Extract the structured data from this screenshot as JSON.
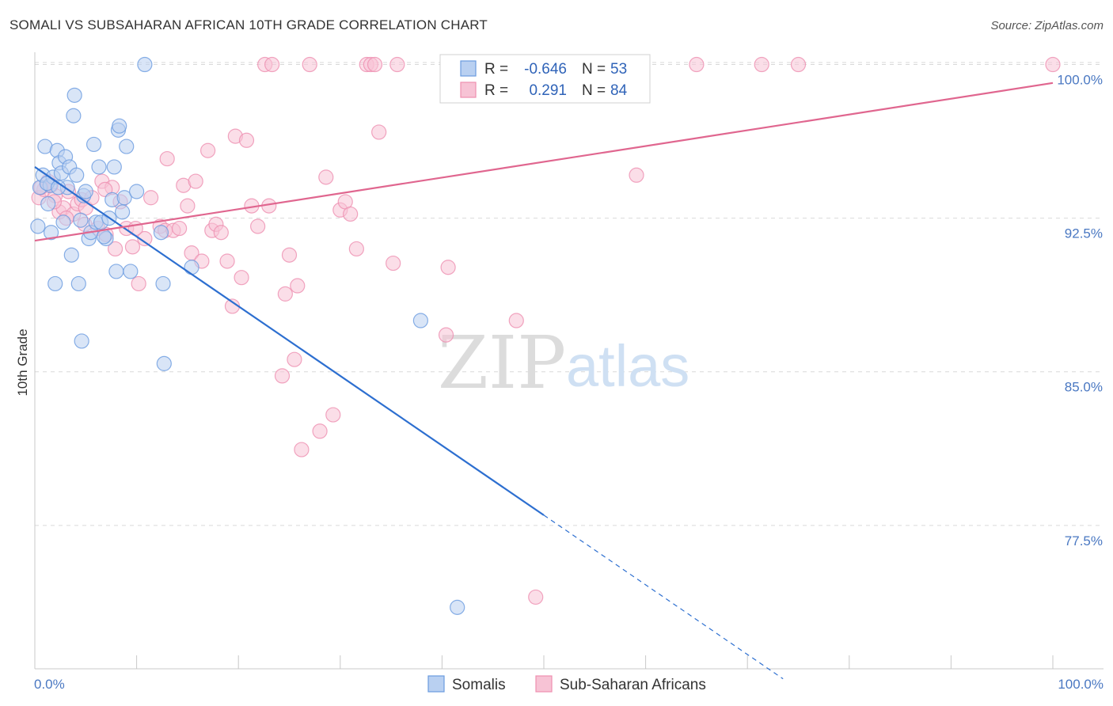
{
  "header": {
    "title": "SOMALI VS SUBSAHARAN AFRICAN 10TH GRADE CORRELATION CHART",
    "source": "Source: ZipAtlas.com"
  },
  "watermark": {
    "zip": "ZIP",
    "atlas": "atlas"
  },
  "colors": {
    "somali": "#6a9be0",
    "somali_fill": "#b9d0f1",
    "somali_line": "#2d6fd0",
    "subsaharan": "#ee8fb0",
    "subsaharan_fill": "#f7c3d5",
    "subsaharan_line": "#e0668f",
    "tick_text": "#4a78c2",
    "grid": "#d9d9d9"
  },
  "legend": {
    "rows": [
      {
        "r_label": "R =",
        "r_value": "-0.646",
        "n_label": "N =",
        "n_value": "53"
      },
      {
        "r_label": "R =",
        "r_value": "0.291",
        "n_label": "N =",
        "n_value": "84"
      }
    ]
  },
  "bottom_legend": {
    "series1": "Somalis",
    "series2": "Sub-Saharan Africans"
  },
  "chart_data": {
    "type": "scatter",
    "title": "SOMALI VS SUBSAHARAN AFRICAN 10TH GRADE CORRELATION CHART",
    "xlabel": "",
    "ylabel": "10th Grade",
    "xlim": [
      0,
      100
    ],
    "ylim": [
      70.5,
      100.6
    ],
    "x_tick_labels": [
      "0.0%",
      "100.0%"
    ],
    "y_ticks": [
      77.5,
      85.0,
      92.5,
      100.0
    ],
    "y_tick_labels": [
      "77.5%",
      "85.0%",
      "92.5%",
      "100.0%"
    ],
    "grid": true,
    "series": [
      {
        "name": "Somalis",
        "r": -0.646,
        "n": 53,
        "trend": {
          "x0": 0,
          "y0": 95.0,
          "x1": 50,
          "y1": 78.0,
          "dashed_to_x": 73.5
        },
        "points": [
          [
            0.3,
            92.1
          ],
          [
            0.5,
            94.0
          ],
          [
            0.8,
            94.6
          ],
          [
            1.0,
            96.0
          ],
          [
            1.3,
            93.2
          ],
          [
            1.5,
            94.1
          ],
          [
            1.6,
            91.8
          ],
          [
            1.8,
            94.5
          ],
          [
            2.0,
            89.3
          ],
          [
            2.2,
            95.8
          ],
          [
            2.4,
            95.2
          ],
          [
            2.6,
            94.7
          ],
          [
            2.8,
            92.3
          ],
          [
            3.0,
            95.5
          ],
          [
            3.2,
            94.0
          ],
          [
            3.4,
            95.0
          ],
          [
            3.6,
            90.7
          ],
          [
            3.8,
            97.5
          ],
          [
            3.9,
            98.5
          ],
          [
            4.1,
            94.6
          ],
          [
            4.3,
            89.3
          ],
          [
            4.5,
            92.4
          ],
          [
            4.6,
            86.5
          ],
          [
            4.8,
            93.6
          ],
          [
            5.0,
            93.8
          ],
          [
            5.3,
            91.5
          ],
          [
            5.5,
            91.8
          ],
          [
            5.8,
            96.1
          ],
          [
            6.0,
            92.3
          ],
          [
            6.3,
            95.0
          ],
          [
            6.5,
            92.3
          ],
          [
            7.0,
            91.5
          ],
          [
            7.3,
            92.5
          ],
          [
            7.6,
            93.4
          ],
          [
            7.8,
            95.0
          ],
          [
            8.0,
            89.9
          ],
          [
            8.2,
            96.8
          ],
          [
            8.3,
            97.0
          ],
          [
            8.6,
            92.8
          ],
          [
            8.8,
            93.5
          ],
          [
            9.0,
            96.0
          ],
          [
            9.4,
            89.9
          ],
          [
            10.0,
            93.8
          ],
          [
            10.8,
            100.0
          ],
          [
            12.4,
            91.8
          ],
          [
            12.6,
            89.3
          ],
          [
            12.7,
            85.4
          ],
          [
            15.4,
            90.1
          ],
          [
            37.9,
            87.5
          ],
          [
            41.5,
            73.5
          ],
          [
            1.2,
            94.2
          ],
          [
            2.3,
            94.0
          ],
          [
            6.8,
            91.6
          ]
        ]
      },
      {
        "name": "Sub-Saharan Africans",
        "r": 0.291,
        "n": 84,
        "trend": {
          "x0": 0,
          "y0": 91.4,
          "x1": 100,
          "y1": 99.1
        },
        "points": [
          [
            0.4,
            93.5
          ],
          [
            0.9,
            93.9
          ],
          [
            1.3,
            94.3
          ],
          [
            1.6,
            94.1
          ],
          [
            2.0,
            93.6
          ],
          [
            2.4,
            92.8
          ],
          [
            2.8,
            93.0
          ],
          [
            3.3,
            93.8
          ],
          [
            3.8,
            92.7
          ],
          [
            4.2,
            93.2
          ],
          [
            4.6,
            93.4
          ],
          [
            5.0,
            93.0
          ],
          [
            5.6,
            93.5
          ],
          [
            6.2,
            92.0
          ],
          [
            6.6,
            94.3
          ],
          [
            7.0,
            91.7
          ],
          [
            7.6,
            94.0
          ],
          [
            7.9,
            91.0
          ],
          [
            8.4,
            93.3
          ],
          [
            9.0,
            92.0
          ],
          [
            9.6,
            91.1
          ],
          [
            10.2,
            89.3
          ],
          [
            10.8,
            91.5
          ],
          [
            11.4,
            93.5
          ],
          [
            12.3,
            92.1
          ],
          [
            12.8,
            91.9
          ],
          [
            13.0,
            95.4
          ],
          [
            13.6,
            91.9
          ],
          [
            14.2,
            92.0
          ],
          [
            14.6,
            94.1
          ],
          [
            15.0,
            93.1
          ],
          [
            15.4,
            90.8
          ],
          [
            15.8,
            94.3
          ],
          [
            16.4,
            90.4
          ],
          [
            17.0,
            95.8
          ],
          [
            17.4,
            91.9
          ],
          [
            17.8,
            92.2
          ],
          [
            18.3,
            91.8
          ],
          [
            18.9,
            90.4
          ],
          [
            19.4,
            88.2
          ],
          [
            19.7,
            96.5
          ],
          [
            20.3,
            89.6
          ],
          [
            20.8,
            96.3
          ],
          [
            21.3,
            93.1
          ],
          [
            21.9,
            92.1
          ],
          [
            22.6,
            100.0
          ],
          [
            23.0,
            93.1
          ],
          [
            23.3,
            100.0
          ],
          [
            24.3,
            84.8
          ],
          [
            24.6,
            88.8
          ],
          [
            25.0,
            90.7
          ],
          [
            25.5,
            85.6
          ],
          [
            25.8,
            89.2
          ],
          [
            26.2,
            81.2
          ],
          [
            27.0,
            100.0
          ],
          [
            28.0,
            82.1
          ],
          [
            28.6,
            94.5
          ],
          [
            29.3,
            82.9
          ],
          [
            30.0,
            92.9
          ],
          [
            30.5,
            93.3
          ],
          [
            31.0,
            92.7
          ],
          [
            31.6,
            91.0
          ],
          [
            32.6,
            100.0
          ],
          [
            33.0,
            100.0
          ],
          [
            33.4,
            100.0
          ],
          [
            33.8,
            96.7
          ],
          [
            35.2,
            90.3
          ],
          [
            35.6,
            100.0
          ],
          [
            40.4,
            86.8
          ],
          [
            40.6,
            90.1
          ],
          [
            44.9,
            100.0
          ],
          [
            47.3,
            87.5
          ],
          [
            49.2,
            74.0
          ],
          [
            59.1,
            94.6
          ],
          [
            65.0,
            100.0
          ],
          [
            71.4,
            100.0
          ],
          [
            75.0,
            100.0
          ],
          [
            100.0,
            100.0
          ],
          [
            0.6,
            94.0
          ],
          [
            1.9,
            93.3
          ],
          [
            3.1,
            92.5
          ],
          [
            4.9,
            92.2
          ],
          [
            6.9,
            93.9
          ],
          [
            9.9,
            92.0
          ]
        ]
      }
    ]
  }
}
